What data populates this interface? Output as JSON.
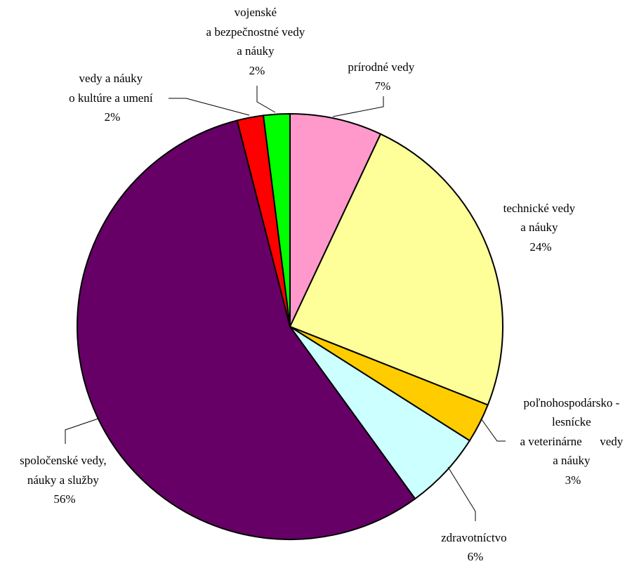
{
  "chart_data": {
    "type": "pie",
    "title": "",
    "start_angle_deg": 0,
    "direction": "clockwise",
    "slices": [
      {
        "id": "prirodne",
        "label_lines": [
          "prírodné vedy"
        ],
        "value": 7,
        "value_label": "7%",
        "color": "#ff99cc"
      },
      {
        "id": "technicke",
        "label_lines": [
          "technické vedy",
          "a náuky"
        ],
        "value": 24,
        "value_label": "24%",
        "color": "#ffff99"
      },
      {
        "id": "polnohospodarsko",
        "label_lines": [
          "poľnohospodársko -",
          "lesnícke",
          "a veterinárne      vedy",
          "a náuky"
        ],
        "value": 3,
        "value_label": "3%",
        "color": "#ffcc00"
      },
      {
        "id": "zdravotnictvo",
        "label_lines": [
          "zdravotníctvo"
        ],
        "value": 6,
        "value_label": "6%",
        "color": "#ccffff"
      },
      {
        "id": "spolocenske",
        "label_lines": [
          "spoločenské vedy,",
          "náuky a služby"
        ],
        "value": 56,
        "value_label": "56%",
        "color": "#660066"
      },
      {
        "id": "kultura",
        "label_lines": [
          "vedy a náuky",
          "o kultúre a umení"
        ],
        "value": 2,
        "value_label": "2%",
        "color": "#ff0000"
      },
      {
        "id": "vojenske",
        "label_lines": [
          "vojenské",
          "a bezpečnostné vedy",
          "a náuky"
        ],
        "value": 2,
        "value_label": "2%",
        "color": "#00ff00"
      }
    ]
  }
}
